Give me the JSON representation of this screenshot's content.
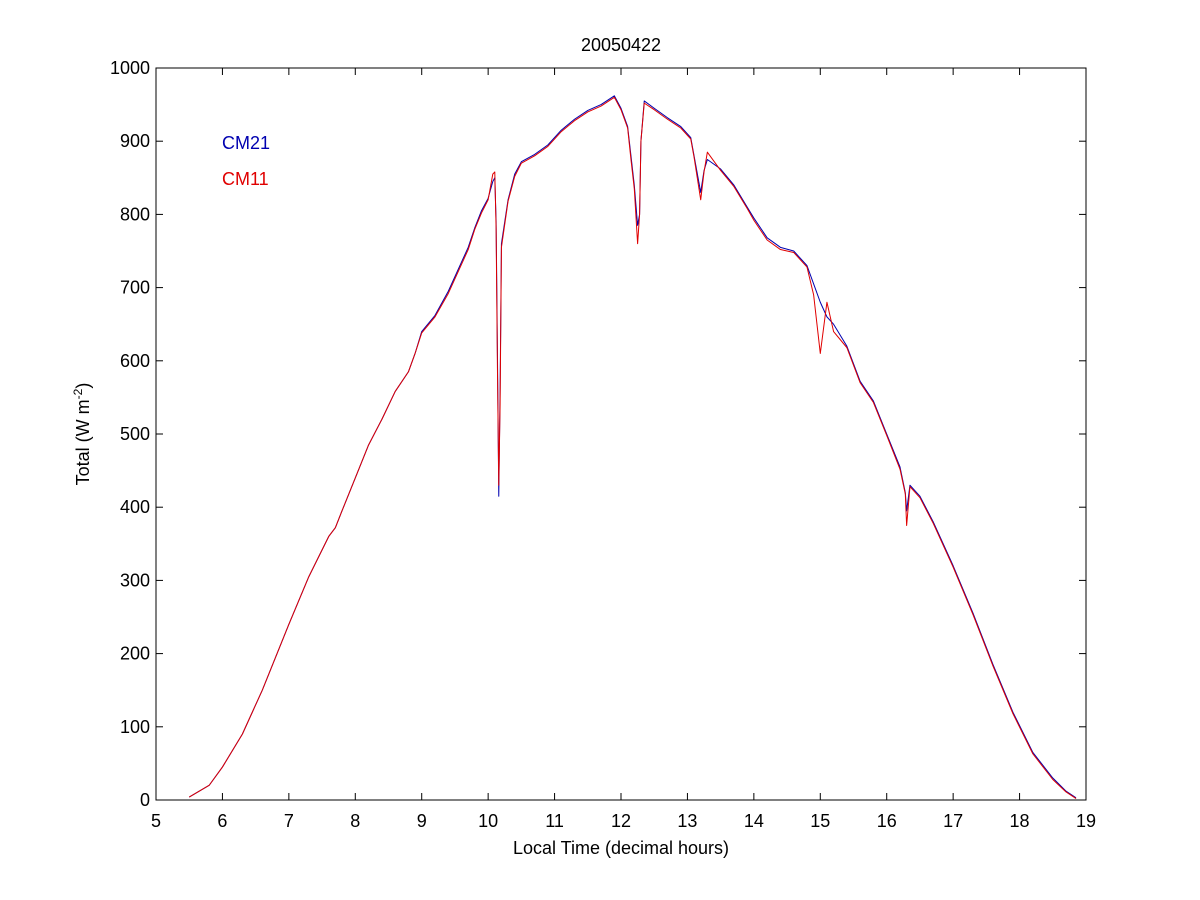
{
  "chart_data": {
    "type": "line",
    "title": "20050422",
    "xlabel": "Local Time (decimal hours)",
    "ylabel": {
      "base": "Total (W m",
      "sup": "-2",
      "tail": ")"
    },
    "xlim": [
      5,
      19
    ],
    "ylim": [
      0,
      1000
    ],
    "x_ticks": [
      "5",
      "6",
      "7",
      "8",
      "9",
      "10",
      "11",
      "12",
      "13",
      "14",
      "15",
      "16",
      "17",
      "18",
      "19"
    ],
    "y_ticks": [
      "0",
      "100",
      "200",
      "300",
      "400",
      "500",
      "600",
      "700",
      "800",
      "900",
      "1000"
    ],
    "grid": false,
    "legend_placement": "top-left",
    "series": [
      {
        "name": "CM21",
        "color": "#0000b0",
        "points": [
          [
            5.5,
            4
          ],
          [
            5.8,
            20
          ],
          [
            6.0,
            45
          ],
          [
            6.3,
            90
          ],
          [
            6.6,
            150
          ],
          [
            7.0,
            240
          ],
          [
            7.3,
            305
          ],
          [
            7.6,
            360
          ],
          [
            7.7,
            372
          ],
          [
            7.8,
            395
          ],
          [
            8.0,
            440
          ],
          [
            8.2,
            485
          ],
          [
            8.4,
            520
          ],
          [
            8.6,
            558
          ],
          [
            8.8,
            585
          ],
          [
            8.9,
            610
          ],
          [
            9.0,
            640
          ],
          [
            9.2,
            662
          ],
          [
            9.4,
            695
          ],
          [
            9.5,
            715
          ],
          [
            9.6,
            735
          ],
          [
            9.7,
            755
          ],
          [
            9.8,
            782
          ],
          [
            9.9,
            805
          ],
          [
            10.0,
            822
          ],
          [
            10.07,
            845
          ],
          [
            10.1,
            850
          ],
          [
            10.12,
            790
          ],
          [
            10.14,
            610
          ],
          [
            10.16,
            415
          ],
          [
            10.18,
            560
          ],
          [
            10.2,
            760
          ],
          [
            10.3,
            820
          ],
          [
            10.4,
            855
          ],
          [
            10.5,
            872
          ],
          [
            10.7,
            882
          ],
          [
            10.9,
            895
          ],
          [
            11.1,
            915
          ],
          [
            11.3,
            930
          ],
          [
            11.5,
            942
          ],
          [
            11.7,
            950
          ],
          [
            11.9,
            962
          ],
          [
            12.0,
            945
          ],
          [
            12.1,
            920
          ],
          [
            12.15,
            880
          ],
          [
            12.2,
            840
          ],
          [
            12.25,
            785
          ],
          [
            12.28,
            800
          ],
          [
            12.3,
            900
          ],
          [
            12.35,
            955
          ],
          [
            12.5,
            945
          ],
          [
            12.7,
            932
          ],
          [
            12.9,
            920
          ],
          [
            13.05,
            905
          ],
          [
            13.1,
            880
          ],
          [
            13.2,
            830
          ],
          [
            13.25,
            860
          ],
          [
            13.3,
            875
          ],
          [
            13.5,
            862
          ],
          [
            13.7,
            840
          ],
          [
            13.9,
            810
          ],
          [
            14.0,
            795
          ],
          [
            14.2,
            768
          ],
          [
            14.4,
            755
          ],
          [
            14.6,
            750
          ],
          [
            14.8,
            730
          ],
          [
            14.9,
            705
          ],
          [
            15.0,
            680
          ],
          [
            15.1,
            660
          ],
          [
            15.2,
            650
          ],
          [
            15.4,
            620
          ],
          [
            15.6,
            572
          ],
          [
            15.8,
            545
          ],
          [
            16.0,
            500
          ],
          [
            16.2,
            455
          ],
          [
            16.28,
            420
          ],
          [
            16.3,
            395
          ],
          [
            16.35,
            430
          ],
          [
            16.5,
            415
          ],
          [
            16.7,
            380
          ],
          [
            17.0,
            320
          ],
          [
            17.3,
            255
          ],
          [
            17.6,
            185
          ],
          [
            17.9,
            120
          ],
          [
            18.2,
            65
          ],
          [
            18.5,
            30
          ],
          [
            18.7,
            12
          ],
          [
            18.85,
            3
          ]
        ]
      },
      {
        "name": "CM11",
        "color": "#e00000",
        "points": [
          [
            5.5,
            4
          ],
          [
            5.8,
            20
          ],
          [
            6.0,
            45
          ],
          [
            6.3,
            90
          ],
          [
            6.6,
            150
          ],
          [
            7.0,
            240
          ],
          [
            7.3,
            305
          ],
          [
            7.6,
            360
          ],
          [
            7.7,
            372
          ],
          [
            7.8,
            395
          ],
          [
            8.0,
            440
          ],
          [
            8.2,
            485
          ],
          [
            8.4,
            520
          ],
          [
            8.6,
            558
          ],
          [
            8.8,
            585
          ],
          [
            8.9,
            610
          ],
          [
            9.0,
            638
          ],
          [
            9.2,
            660
          ],
          [
            9.4,
            692
          ],
          [
            9.5,
            712
          ],
          [
            9.6,
            732
          ],
          [
            9.7,
            752
          ],
          [
            9.8,
            780
          ],
          [
            9.9,
            802
          ],
          [
            10.0,
            820
          ],
          [
            10.07,
            855
          ],
          [
            10.1,
            858
          ],
          [
            10.12,
            780
          ],
          [
            10.14,
            590
          ],
          [
            10.16,
            430
          ],
          [
            10.18,
            540
          ],
          [
            10.2,
            755
          ],
          [
            10.3,
            818
          ],
          [
            10.4,
            852
          ],
          [
            10.5,
            870
          ],
          [
            10.7,
            880
          ],
          [
            10.9,
            893
          ],
          [
            11.1,
            913
          ],
          [
            11.3,
            928
          ],
          [
            11.5,
            940
          ],
          [
            11.7,
            948
          ],
          [
            11.9,
            960
          ],
          [
            12.0,
            943
          ],
          [
            12.1,
            918
          ],
          [
            12.15,
            875
          ],
          [
            12.2,
            835
          ],
          [
            12.25,
            760
          ],
          [
            12.28,
            800
          ],
          [
            12.3,
            900
          ],
          [
            12.35,
            952
          ],
          [
            12.5,
            943
          ],
          [
            12.7,
            930
          ],
          [
            12.9,
            918
          ],
          [
            13.05,
            903
          ],
          [
            13.1,
            878
          ],
          [
            13.2,
            820
          ],
          [
            13.25,
            858
          ],
          [
            13.3,
            885
          ],
          [
            13.5,
            860
          ],
          [
            13.7,
            838
          ],
          [
            13.9,
            808
          ],
          [
            14.0,
            792
          ],
          [
            14.2,
            765
          ],
          [
            14.4,
            752
          ],
          [
            14.6,
            748
          ],
          [
            14.8,
            728
          ],
          [
            14.9,
            690
          ],
          [
            15.0,
            610
          ],
          [
            15.1,
            680
          ],
          [
            15.2,
            640
          ],
          [
            15.4,
            618
          ],
          [
            15.6,
            570
          ],
          [
            15.8,
            543
          ],
          [
            16.0,
            498
          ],
          [
            16.2,
            452
          ],
          [
            16.28,
            418
          ],
          [
            16.3,
            375
          ],
          [
            16.35,
            428
          ],
          [
            16.5,
            413
          ],
          [
            16.7,
            378
          ],
          [
            17.0,
            318
          ],
          [
            17.3,
            253
          ],
          [
            17.6,
            183
          ],
          [
            17.9,
            118
          ],
          [
            18.2,
            63
          ],
          [
            18.5,
            28
          ],
          [
            18.7,
            11
          ],
          [
            18.85,
            2
          ]
        ]
      }
    ]
  }
}
